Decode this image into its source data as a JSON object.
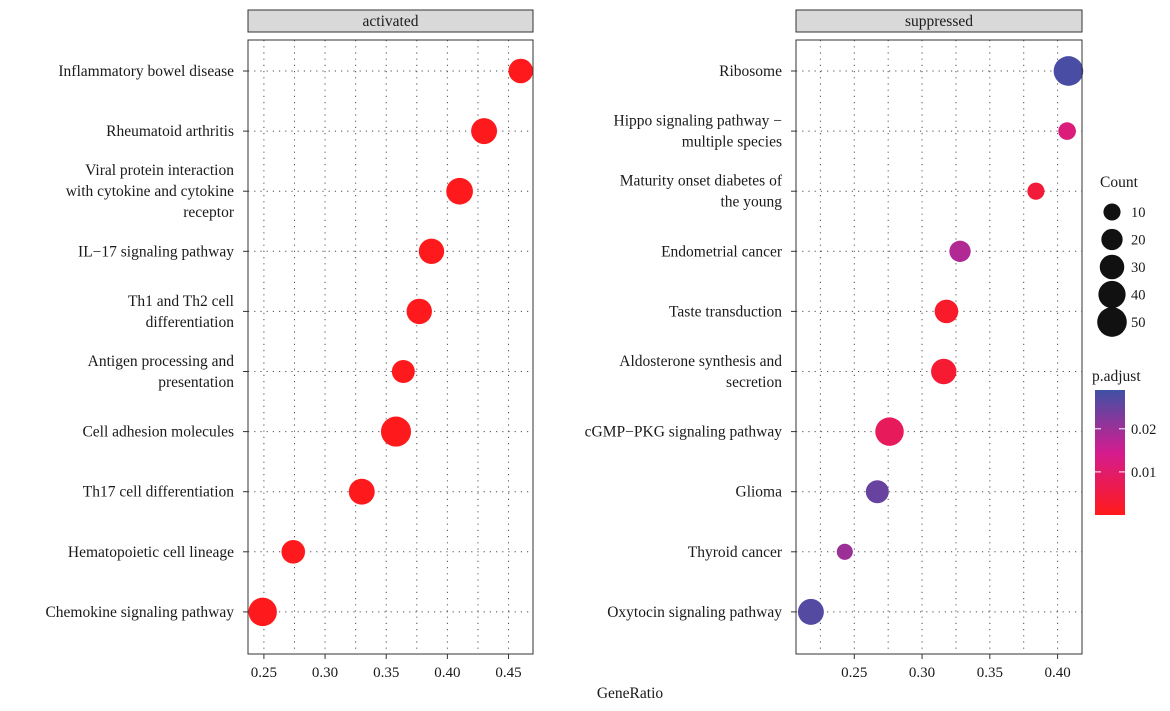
{
  "chart_data": {
    "type": "scatter",
    "xlabel": "GeneRatio",
    "panels": [
      {
        "title": "activated",
        "xlim": [
          0.237,
          0.47
        ],
        "xticks": [
          0.25,
          0.3,
          0.35,
          0.4,
          0.45
        ],
        "xtick_labels": [
          "0.25",
          "0.30",
          "0.35",
          "0.40",
          "0.45"
        ],
        "points": [
          {
            "label": [
              "Inflammatory bowel disease"
            ],
            "x": 0.46,
            "count": 30,
            "p_adjust": 0.0002
          },
          {
            "label": [
              "Rheumatoid arthritis"
            ],
            "x": 0.43,
            "count": 35,
            "p_adjust": 0.0002
          },
          {
            "label": [
              "Viral protein interaction",
              "with cytokine and cytokine",
              "receptor"
            ],
            "x": 0.41,
            "count": 38,
            "p_adjust": 0.0002
          },
          {
            "label": [
              "IL−17 signaling pathway"
            ],
            "x": 0.387,
            "count": 33,
            "p_adjust": 0.0002
          },
          {
            "label": [
              "Th1 and Th2 cell",
              "differentiation"
            ],
            "x": 0.377,
            "count": 33,
            "p_adjust": 0.0002
          },
          {
            "label": [
              "Antigen processing and",
              "presentation"
            ],
            "x": 0.364,
            "count": 25,
            "p_adjust": 0.0002
          },
          {
            "label": [
              "Cell adhesion molecules"
            ],
            "x": 0.358,
            "count": 52,
            "p_adjust": 0.0002
          },
          {
            "label": [
              "Th17 cell differentiation"
            ],
            "x": 0.33,
            "count": 35,
            "p_adjust": 0.0002
          },
          {
            "label": [
              "Hematopoietic cell lineage"
            ],
            "x": 0.274,
            "count": 27,
            "p_adjust": 0.0002
          },
          {
            "label": [
              "Chemokine signaling pathway"
            ],
            "x": 0.249,
            "count": 45,
            "p_adjust": 0.0002
          }
        ]
      },
      {
        "title": "suppressed",
        "xlim": [
          0.207,
          0.418
        ],
        "xticks": [
          0.25,
          0.3,
          0.35,
          0.4
        ],
        "xtick_labels": [
          "0.25",
          "0.30",
          "0.35",
          "0.40"
        ],
        "points": [
          {
            "label": [
              "Ribosome"
            ],
            "x": 0.408,
            "count": 50,
            "p_adjust": 0.028
          },
          {
            "label": [
              "Hippo signaling pathway −",
              "multiple species"
            ],
            "x": 0.407,
            "count": 11,
            "p_adjust": 0.012
          },
          {
            "label": [
              "Maturity onset diabetes of",
              "the young"
            ],
            "x": 0.384,
            "count": 10,
            "p_adjust": 0.004
          },
          {
            "label": [
              "Endometrial cancer"
            ],
            "x": 0.328,
            "count": 20,
            "p_adjust": 0.018
          },
          {
            "label": [
              "Taste transduction"
            ],
            "x": 0.318,
            "count": 27,
            "p_adjust": 0.002
          },
          {
            "label": [
              "Aldosterone synthesis and",
              "secretion"
            ],
            "x": 0.316,
            "count": 33,
            "p_adjust": 0.003
          },
          {
            "label": [
              "cGMP−PKG signaling pathway"
            ],
            "x": 0.276,
            "count": 45,
            "p_adjust": 0.008
          },
          {
            "label": [
              "Glioma"
            ],
            "x": 0.267,
            "count": 25,
            "p_adjust": 0.025
          },
          {
            "label": [
              "Thyroid cancer"
            ],
            "x": 0.243,
            "count": 8,
            "p_adjust": 0.02
          },
          {
            "label": [
              "Oxytocin signaling pathway"
            ],
            "x": 0.218,
            "count": 35,
            "p_adjust": 0.027
          }
        ]
      }
    ],
    "legend_size": {
      "title": "Count",
      "values": [
        10,
        20,
        30,
        40,
        50
      ],
      "labels": [
        "10",
        "20",
        "30",
        "40",
        "50"
      ]
    },
    "legend_color": {
      "title": "p.adjust",
      "range": [
        0.0,
        0.029
      ],
      "ticks": [
        0.01,
        0.02
      ],
      "tick_labels": [
        "0.01",
        "0.02"
      ],
      "low_color": "#ff1a1a",
      "mid_color": "#d41c8f",
      "high_color": "#3f51a5"
    },
    "grid": true,
    "colors": {
      "strip_fill": "#d9d9d9",
      "panel_border": "#333333",
      "grid_line": "#4d4d4d"
    }
  }
}
